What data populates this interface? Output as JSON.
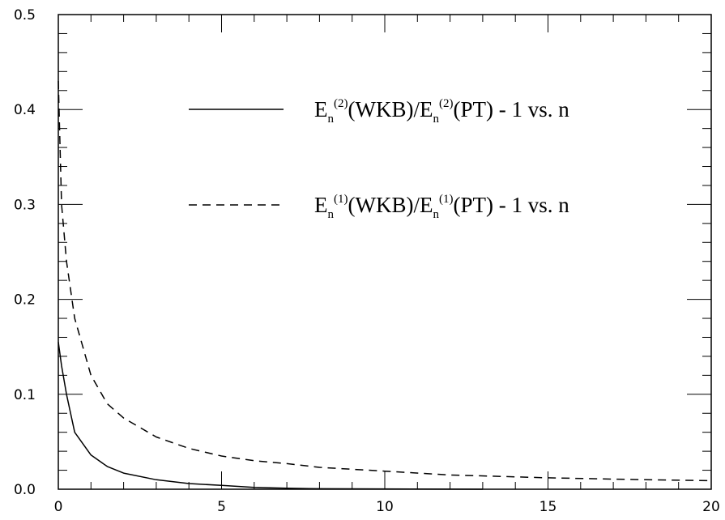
{
  "chart_data": {
    "type": "line",
    "title": "",
    "xlabel": "",
    "ylabel": "",
    "xlim": [
      0,
      20
    ],
    "ylim": [
      0,
      0.5
    ],
    "grid": false,
    "legend_position": "top-right",
    "x_ticks": [
      "0",
      "5",
      "10",
      "15",
      "20"
    ],
    "y_ticks": [
      "0.0",
      "0.1",
      "0.2",
      "0.3",
      "0.4",
      "0.5"
    ],
    "series": [
      {
        "name": "En(2)(WKB)/En(2)(PT) - 1 vs. n",
        "legend": {
          "base1": "E",
          "sub1": "n",
          "sup1": "(2)",
          "mid": "(WKB)/E",
          "sub2": "n",
          "sup2": "(2)",
          "tail": "(PT) - 1 vs. n"
        },
        "style": "solid",
        "color": "#000000",
        "points": [
          [
            0,
            0.155
          ],
          [
            0.1,
            0.13
          ],
          [
            0.25,
            0.1
          ],
          [
            0.5,
            0.06
          ],
          [
            1,
            0.036
          ],
          [
            1.5,
            0.024
          ],
          [
            2,
            0.017
          ],
          [
            3,
            0.01
          ],
          [
            4,
            0.006
          ],
          [
            5,
            0.004
          ],
          [
            6,
            0.002
          ],
          [
            7,
            0.001
          ],
          [
            8,
            0.0005
          ],
          [
            13,
            0.0
          ]
        ]
      },
      {
        "name": "En(1)(WKB)/En(1)(PT) - 1 vs. n",
        "legend": {
          "base1": "E",
          "sub1": "n",
          "sup1": "(1)",
          "mid": "(WKB)/E",
          "sub2": "n",
          "sup2": "(1)",
          "tail": "(PT) - 1 vs. n"
        },
        "style": "dashed",
        "color": "#000000",
        "points": [
          [
            0,
            0.43
          ],
          [
            0.1,
            0.3
          ],
          [
            0.25,
            0.24
          ],
          [
            0.5,
            0.18
          ],
          [
            1,
            0.12
          ],
          [
            1.5,
            0.09
          ],
          [
            2,
            0.075
          ],
          [
            3,
            0.055
          ],
          [
            4,
            0.043
          ],
          [
            5,
            0.035
          ],
          [
            6,
            0.03
          ],
          [
            7,
            0.027
          ],
          [
            8,
            0.023
          ],
          [
            10,
            0.019
          ],
          [
            12,
            0.015
          ],
          [
            15,
            0.012
          ],
          [
            18,
            0.01
          ],
          [
            20,
            0.009
          ]
        ]
      }
    ]
  }
}
